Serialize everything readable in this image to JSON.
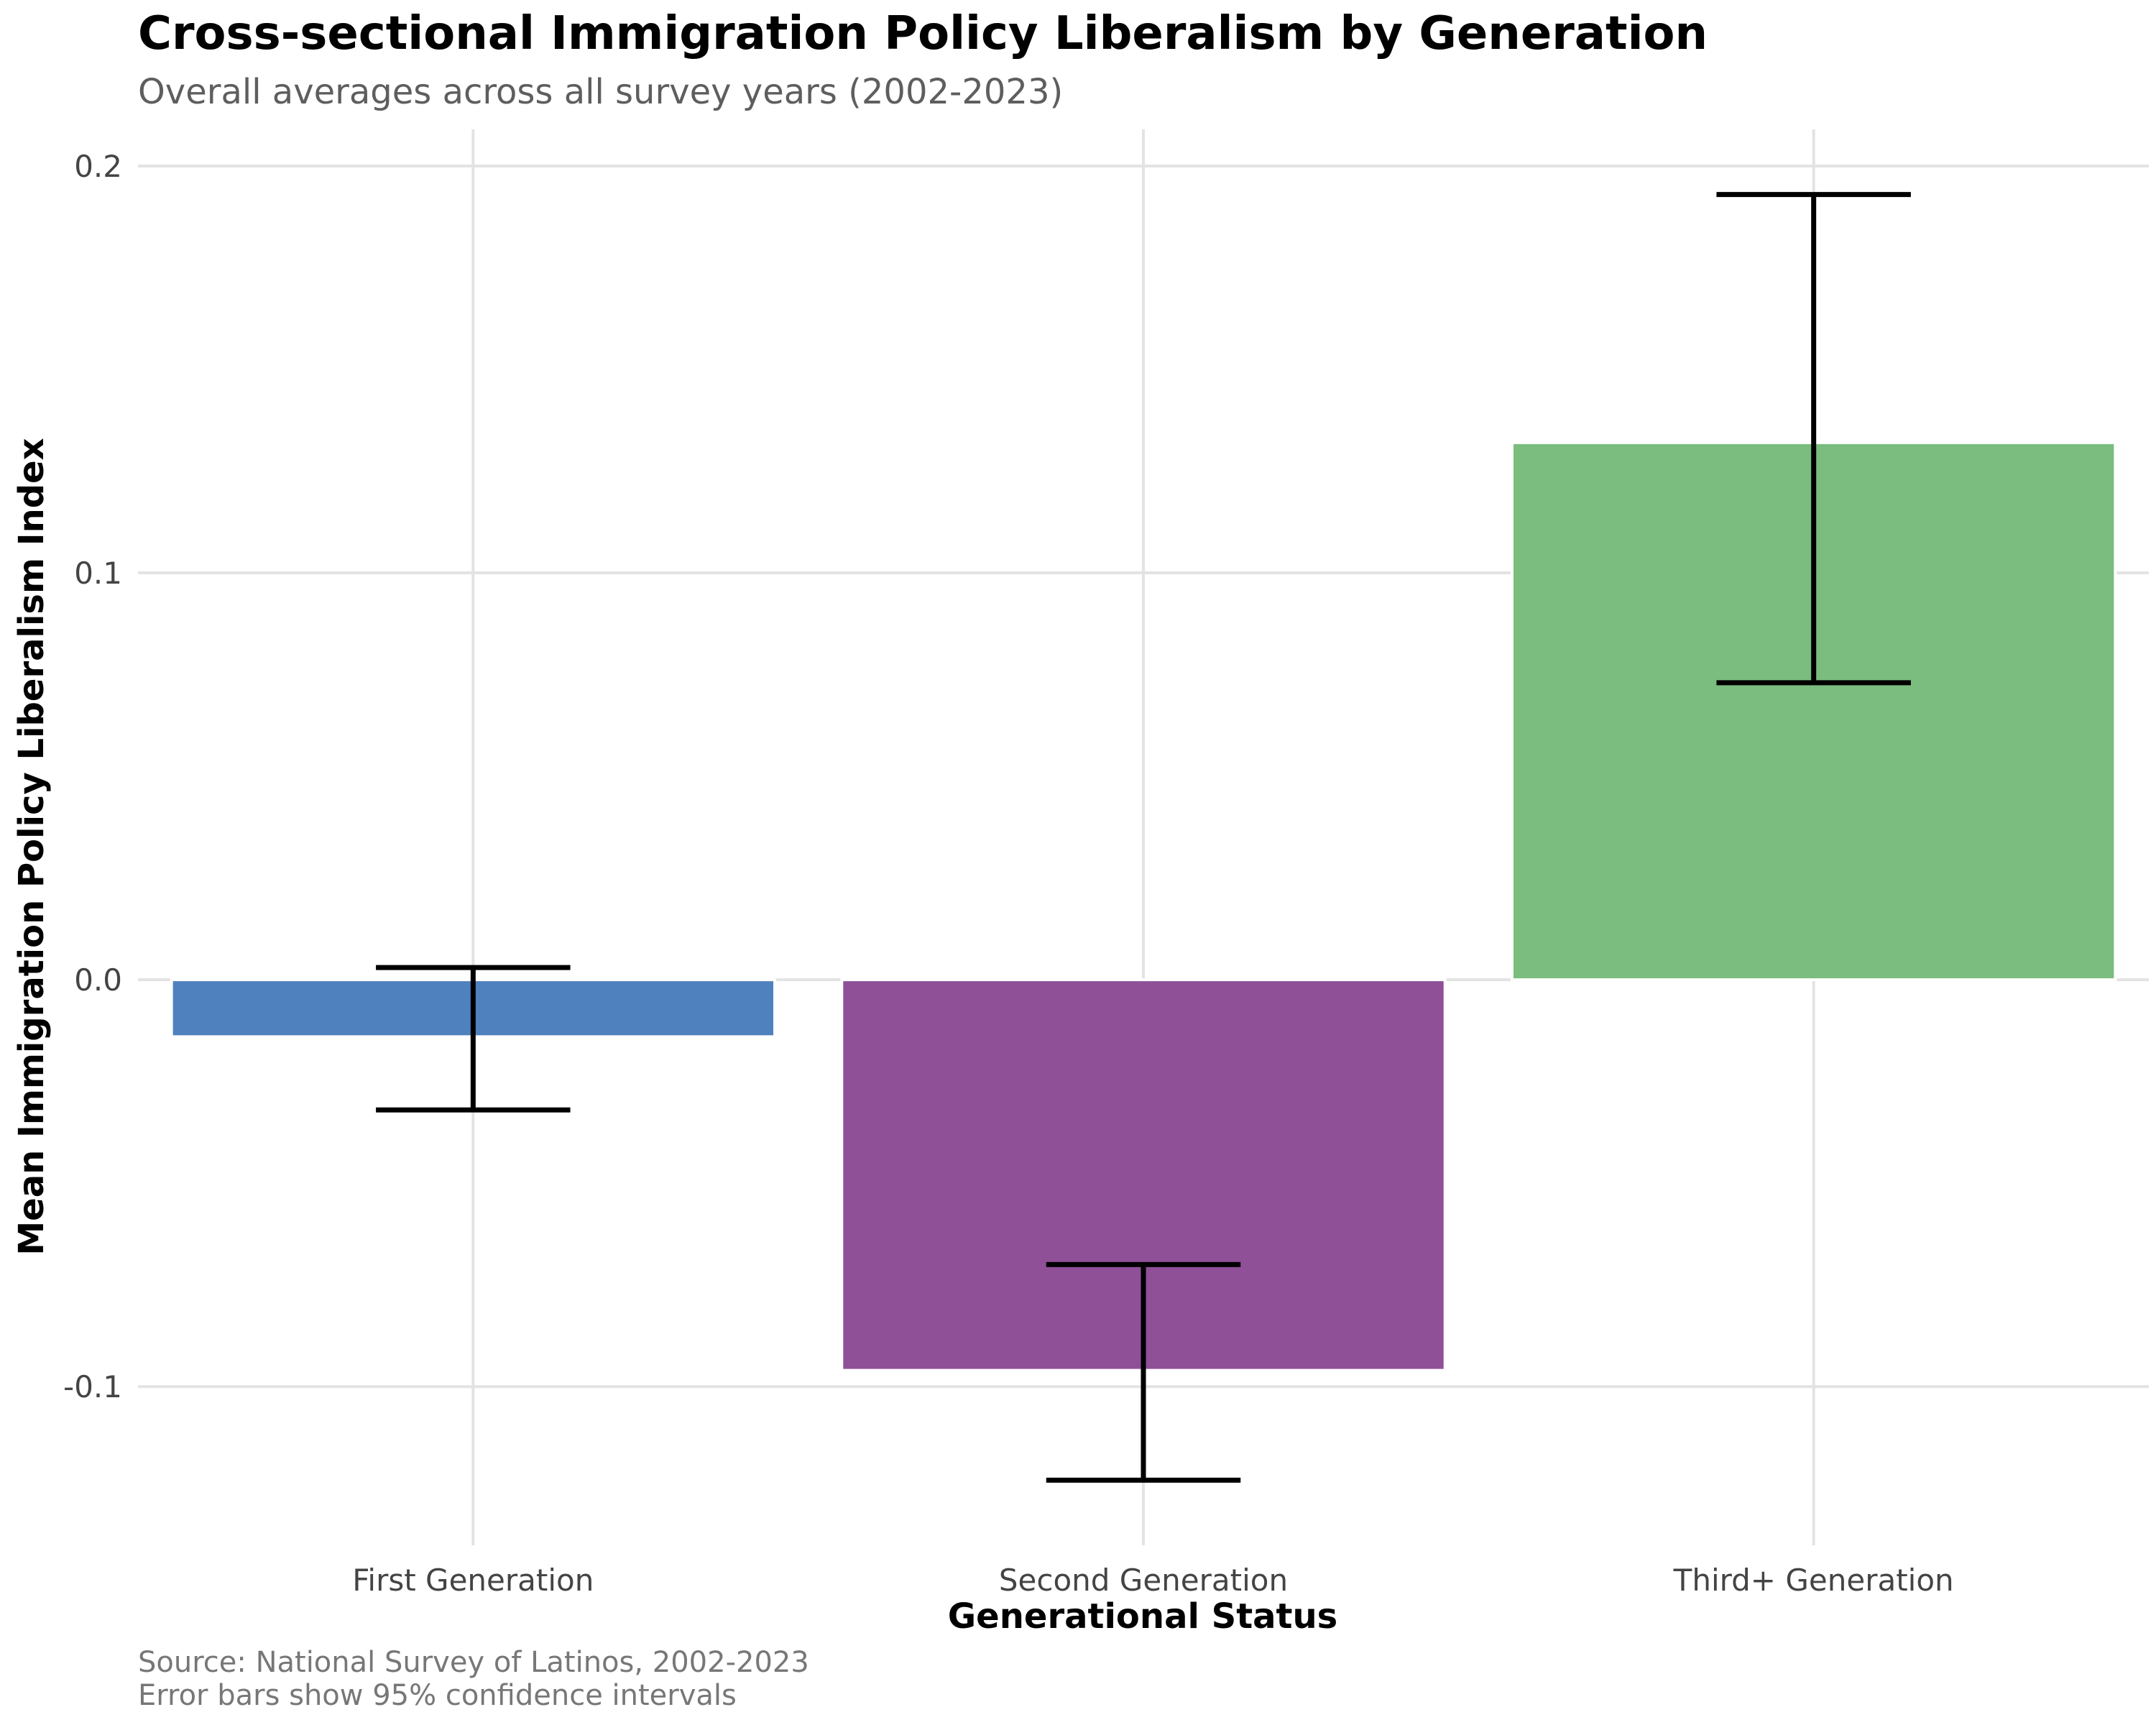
{
  "chart_data": {
    "type": "bar",
    "title": "Cross-sectional Immigration Policy Liberalism by Generation",
    "subtitle": "Overall averages across all survey years (2002-2023)",
    "xlabel": "Generational Status",
    "ylabel": "Mean Immigration Policy Liberalism Index",
    "categories": [
      "First Generation",
      "Second Generation",
      "Third+ Generation"
    ],
    "values": [
      -0.014,
      -0.096,
      0.132
    ],
    "ci_lower": [
      -0.032,
      -0.123,
      0.073
    ],
    "ci_upper": [
      0.003,
      -0.07,
      0.193
    ],
    "bar_colors": [
      "#4e81bd",
      "#8f5098",
      "#7abd7e"
    ],
    "ylim": [
      -0.139,
      0.209
    ],
    "yticks": [
      -0.1,
      0.0,
      0.1,
      0.2
    ],
    "ytick_labels": [
      "-0.1",
      "0.0",
      "0.1",
      "0.2"
    ],
    "grid": true,
    "legend": "none"
  },
  "caption": {
    "line1": "Source: National Survey of Latinos, 2002-2023",
    "line2": "Error bars show 95% confidence intervals"
  }
}
